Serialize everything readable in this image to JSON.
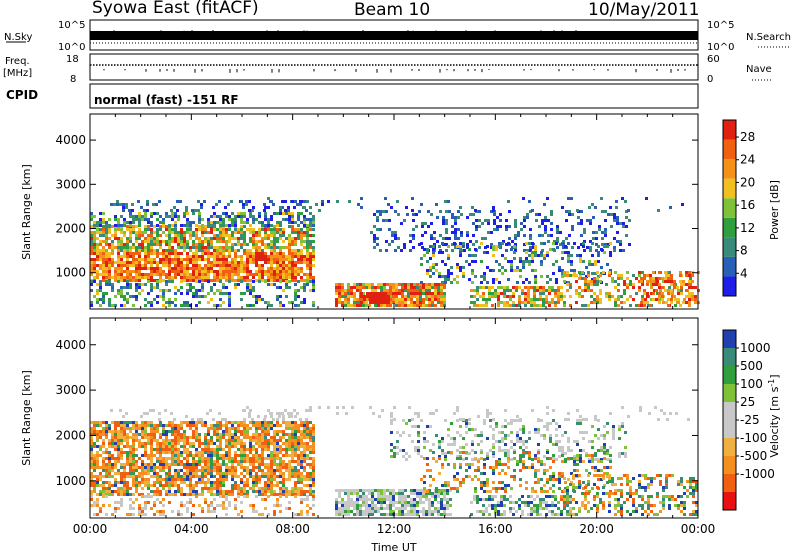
{
  "header": {
    "title": "Syowa East (fitACF)",
    "beam": "Beam 10",
    "date": "10/May/2011"
  },
  "nsky_panel": {
    "left_label": "N.Sky",
    "left_ticks": [
      "10^5",
      "10^0"
    ],
    "right_ticks": [
      "10^5",
      "10^0"
    ],
    "right_label": "N.Search"
  },
  "freq_panel": {
    "left_label_1": "Freq.",
    "left_label_2": "[MHz]",
    "left_ticks": [
      "18",
      "8"
    ],
    "right_ticks": [
      "60",
      "0"
    ],
    "right_label": "Nave"
  },
  "cpid_panel": {
    "label": "CPID",
    "text": "normal (fast) -151 RF"
  },
  "colors": {
    "power": [
      "#1e1ee6",
      "#2a5fb8",
      "#3a8a7a",
      "#2e9f3c",
      "#7ec23a",
      "#f0c020",
      "#f59018",
      "#f06010",
      "#e02010"
    ],
    "velocity": [
      "#e81010",
      "#f06010",
      "#f59020",
      "#f0b040",
      "#c8c8c8",
      "#c8c8c8",
      "#7ec23a",
      "#2e9f3c",
      "#3a8a7a",
      "#2040b0"
    ]
  },
  "chart_data": [
    {
      "type": "heatmap",
      "name_panel": "power",
      "ylabel": "Slant Range [km]",
      "ylim": [
        180,
        4590
      ],
      "yticks": [
        "1000",
        "2000",
        "3000",
        "4000"
      ],
      "xticks": [
        "00:00",
        "04:00",
        "08:00",
        "12:00",
        "16:00",
        "20:00",
        "00:00"
      ],
      "colorbar_label": "Power [dB]",
      "colorbar_ticks": [
        "4",
        "8",
        "12",
        "16",
        "20",
        "24",
        "28"
      ],
      "colorbar_range": [
        0,
        31
      ]
    },
    {
      "type": "heatmap",
      "name_panel": "velocity",
      "ylabel": "Slant Range [km]",
      "ylim": [
        180,
        4590
      ],
      "yticks": [
        "1000",
        "2000",
        "3000",
        "4000"
      ],
      "xticks": [
        "00:00",
        "04:00",
        "08:00",
        "12:00",
        "16:00",
        "20:00",
        "00:00"
      ],
      "xlabel": "Time UT",
      "colorbar_label_main": "Velocity",
      "colorbar_label_unit": "[m s",
      "colorbar_label_exp": "-1",
      "colorbar_label_close": "]",
      "colorbar_ticks": [
        "1000",
        "500",
        "100",
        "25",
        "-25",
        "-100",
        "-500",
        "-1000"
      ]
    }
  ]
}
